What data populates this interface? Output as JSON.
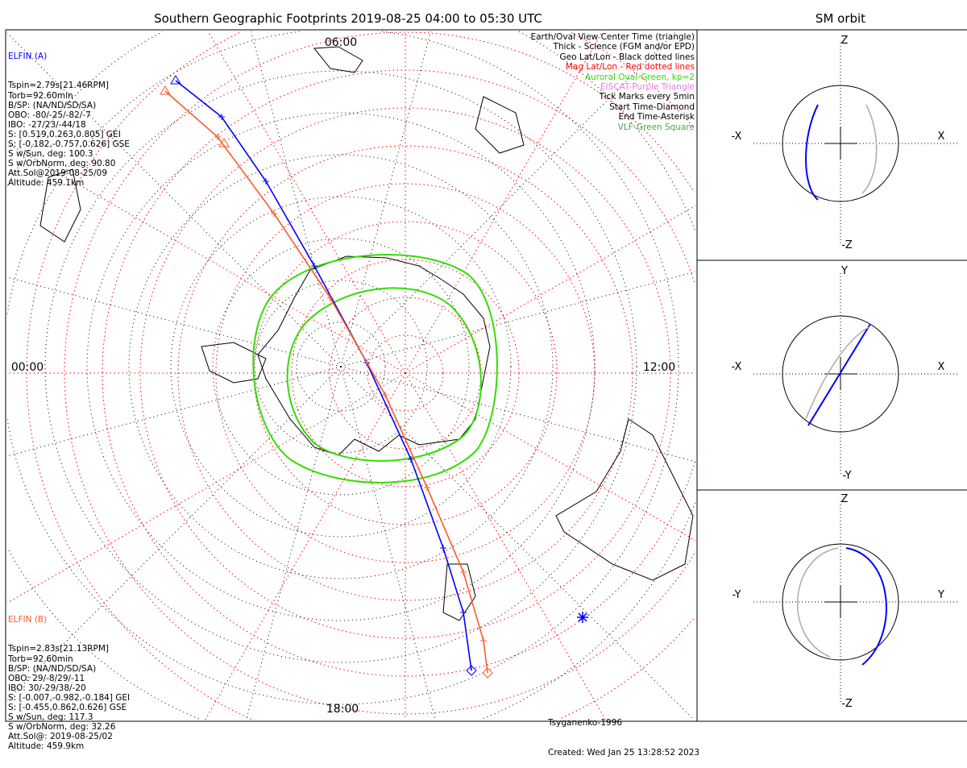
{
  "chart_data": {
    "type": "scatter",
    "title": "Southern Geographic Footprints 2019-08-25 04:00 to 05:30 UTC",
    "right_title": "SM orbit",
    "mlt_labels": {
      "top": "06:00",
      "left": "00:00",
      "right": "12:00",
      "bottom": "18:00"
    },
    "series": [
      {
        "name": "ELFIN (A)",
        "color": "#0000ff",
        "info": [
          "Tspin=2.79s[21.46RPM]",
          "Torb=92.60min",
          "B/SP: (NA/ND/SD/SA)",
          "OBO: -80/-25/-82/-7",
          "IBO: -27/23/-44/18",
          "S: [0.519,0.263,0.805] GEI",
          "S: [-0.182,-0.757,0.626] GSE",
          "S w/Sun, deg: 100.3",
          "S w/OrbNorm, deg: 90.80",
          "Att.Sol@2019-08-25/09",
          "Altitude: 459.1km"
        ]
      },
      {
        "name": "ELFIN (B)",
        "color": "#ff5a2a",
        "info": [
          "Tspin=2.83s[21.13RPM]",
          "Torb=92.60min",
          "B/SP: (NA/ND/SD/SA)",
          "OBO: 29/-8/29/-11",
          "IBO: 30/-29/38/-20",
          "S: [-0.007,-0.982,-0.184] GEI",
          "S: [-0.455,0.862,0.626] GSE",
          "S w/Sun, deg: 117.3",
          "S w/OrbNorm, deg: 32.26",
          "Att.Sol@: 2019-08-25/02",
          "Altitude: 459.9km"
        ]
      }
    ],
    "legend": [
      {
        "text": "Earth/Oval View Center Time (triangle)",
        "color": "#000000"
      },
      {
        "text": "Thick - Science (FGM and/or EPD)",
        "color": "#000000"
      },
      {
        "text": "Geo Lat/Lon - Black dotted lines",
        "color": "#000000"
      },
      {
        "text": "Mag Lat/Lon - Red dotted lines",
        "color": "#ff0000"
      },
      {
        "text": "Auroral Oval-Green, kp=2",
        "color": "#33dd00"
      },
      {
        "text": "EISCAT-Purple Triangle",
        "color": "#ee77ee"
      },
      {
        "text": "Tick Marks every 5min",
        "color": "#000000"
      },
      {
        "text": "Start Time-Diamond",
        "color": "#000000"
      },
      {
        "text": "End Time-Asterisk",
        "color": "#000000"
      },
      {
        "text": "VLF-Green Square",
        "color": "#44aa44"
      }
    ],
    "footer": [
      "Tsyganenko-1996",
      "Created: Wed Jan 25 13:28:52 2023"
    ],
    "orbit_panels": [
      {
        "name": "XZ",
        "up": "Z",
        "down": "-Z",
        "left": "-X",
        "right": "X"
      },
      {
        "name": "XY",
        "up": "Y",
        "down": "-Y",
        "left": "-X",
        "right": "X"
      },
      {
        "name": "YZ",
        "up": "Z",
        "down": "-Z",
        "left": "-Y",
        "right": "Y"
      }
    ]
  }
}
